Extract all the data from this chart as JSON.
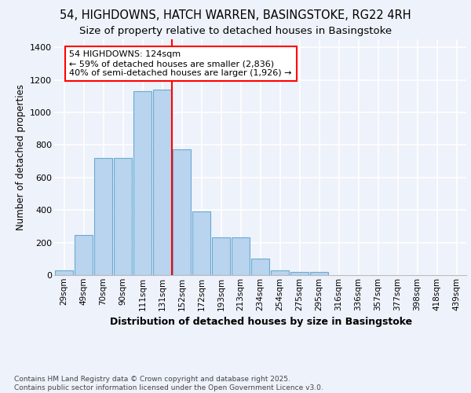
{
  "title_line1": "54, HIGHDOWNS, HATCH WARREN, BASINGSTOKE, RG22 4RH",
  "title_line2": "Size of property relative to detached houses in Basingstoke",
  "xlabel": "Distribution of detached houses by size in Basingstoke",
  "ylabel": "Number of detached properties",
  "categories": [
    "29sqm",
    "49sqm",
    "70sqm",
    "90sqm",
    "111sqm",
    "131sqm",
    "152sqm",
    "172sqm",
    "193sqm",
    "213sqm",
    "234sqm",
    "254sqm",
    "275sqm",
    "295sqm",
    "316sqm",
    "336sqm",
    "357sqm",
    "377sqm",
    "398sqm",
    "418sqm",
    "439sqm"
  ],
  "values": [
    30,
    245,
    720,
    720,
    1130,
    1140,
    775,
    390,
    230,
    230,
    100,
    30,
    20,
    18,
    0,
    0,
    0,
    0,
    0,
    0,
    0
  ],
  "bar_color": "#b8d4ee",
  "bar_edge_color": "#6aaad4",
  "annotation_text": "54 HIGHDOWNS: 124sqm\n← 59% of detached houses are smaller (2,836)\n40% of semi-detached houses are larger (1,926) →",
  "annotation_box_color": "white",
  "annotation_box_edge": "red",
  "vline_color": "red",
  "vline_x": 5.48,
  "ylim": [
    0,
    1450
  ],
  "yticks": [
    0,
    200,
    400,
    600,
    800,
    1000,
    1200,
    1400
  ],
  "bg_color": "#eef2fa",
  "grid_color": "white",
  "footer_text": "Contains HM Land Registry data © Crown copyright and database right 2025.\nContains public sector information licensed under the Open Government Licence v3.0.",
  "title_fontsize": 10.5,
  "subtitle_fontsize": 9.5,
  "xlabel_fontsize": 9,
  "ylabel_fontsize": 8.5,
  "tick_fontsize": 7.5,
  "annotation_fontsize": 8,
  "footer_fontsize": 6.5
}
